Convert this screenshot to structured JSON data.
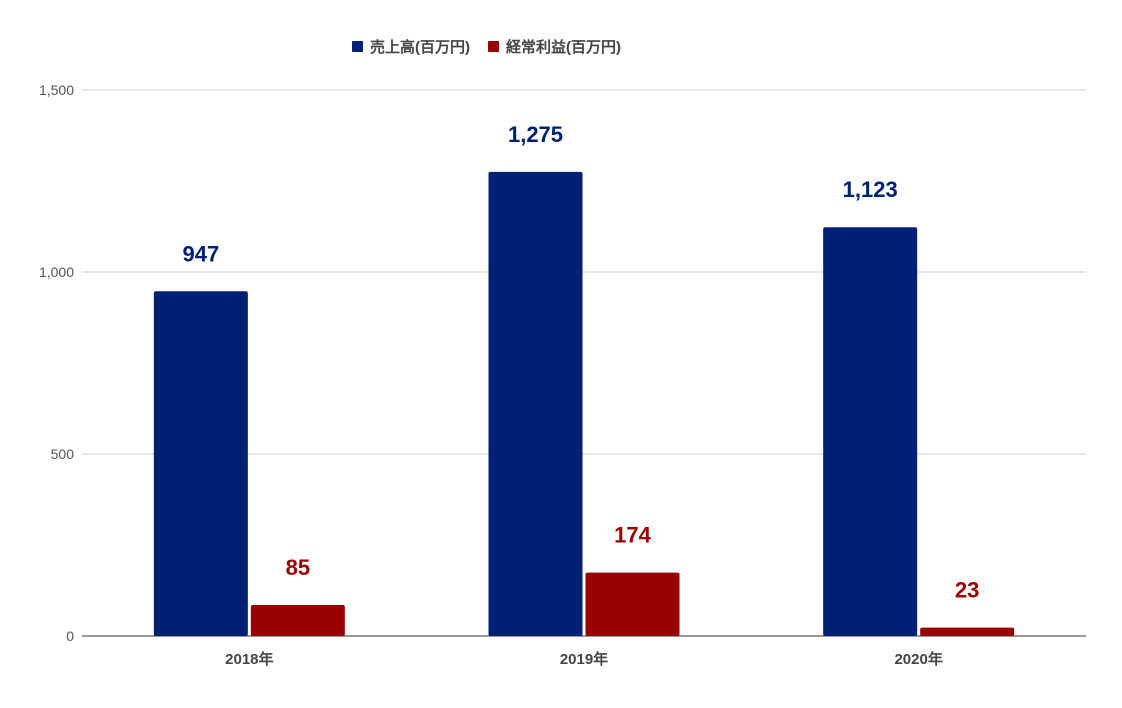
{
  "chart_data": {
    "type": "bar",
    "categories": [
      "2018年",
      "2019年",
      "2020年"
    ],
    "series": [
      {
        "name": "売上高(百万円)",
        "values": [
          947,
          1275,
          1123
        ],
        "color": "#002073"
      },
      {
        "name": "経常利益(百万円)",
        "values": [
          85,
          174,
          23
        ],
        "color": "#990000"
      }
    ],
    "y_ticks": [
      "0",
      "500",
      "1,000",
      "1,500"
    ],
    "data_labels": [
      [
        "947",
        "1,275",
        "1,123"
      ],
      [
        "85",
        "174",
        "23"
      ]
    ],
    "ylim": [
      0,
      1500
    ],
    "grid": true,
    "legend_position": "top"
  }
}
